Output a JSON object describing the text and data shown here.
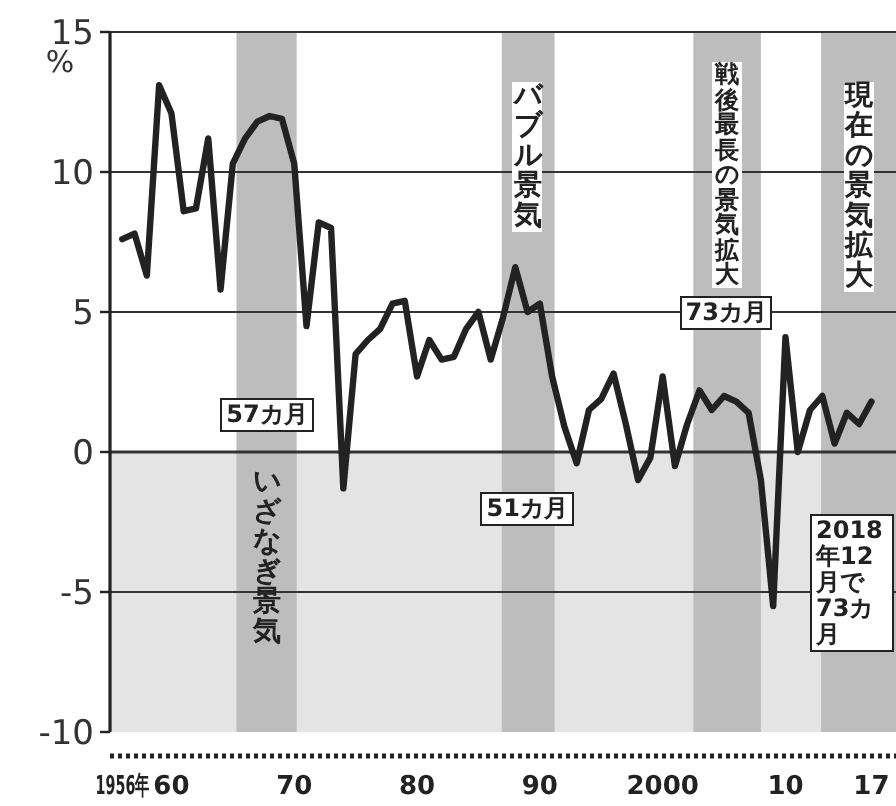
{
  "chart_data": {
    "type": "line",
    "ylabel": "%",
    "x": [
      1956,
      1957,
      1958,
      1959,
      1960,
      1961,
      1962,
      1963,
      1964,
      1965,
      1966,
      1967,
      1968,
      1969,
      1970,
      1971,
      1972,
      1973,
      1974,
      1975,
      1976,
      1977,
      1978,
      1979,
      1980,
      1981,
      1982,
      1983,
      1984,
      1985,
      1986,
      1987,
      1988,
      1989,
      1990,
      1991,
      1992,
      1993,
      1994,
      1995,
      1996,
      1997,
      1998,
      1999,
      2000,
      2001,
      2002,
      2003,
      2004,
      2005,
      2006,
      2007,
      2008,
      2009,
      2010,
      2011,
      2012,
      2013,
      2014,
      2015,
      2016,
      2017
    ],
    "series": [
      {
        "color": "#222222",
        "values": [
          7.6,
          7.8,
          6.3,
          13.1,
          12.1,
          8.6,
          8.7,
          11.2,
          5.8,
          10.3,
          11.2,
          11.8,
          12.0,
          11.9,
          10.3,
          4.5,
          8.2,
          8.0,
          -1.3,
          3.5,
          4.0,
          4.4,
          5.3,
          5.4,
          2.7,
          4.0,
          3.3,
          3.4,
          4.4,
          5.0,
          3.3,
          4.8,
          6.6,
          5.0,
          5.3,
          2.7,
          0.9,
          -0.4,
          1.5,
          1.9,
          2.8,
          1.0,
          -1.0,
          -0.2,
          2.7,
          -0.5,
          1.0,
          2.2,
          1.5,
          2.0,
          1.8,
          1.4,
          -1.0,
          -5.5,
          4.1,
          0.0,
          1.5,
          2.0,
          0.3,
          1.4,
          1.0,
          1.8
        ]
      }
    ],
    "xlim": [
      1955,
      2019
    ],
    "ylim": [
      -10,
      15
    ],
    "xticks": [
      {
        "value": 1956,
        "label": "1956年"
      },
      {
        "value": 1960,
        "label": "60"
      },
      {
        "value": 1970,
        "label": "70"
      },
      {
        "value": 1980,
        "label": "80"
      },
      {
        "value": 1990,
        "label": "90"
      },
      {
        "value": 2000,
        "label": "2000"
      },
      {
        "value": 2010,
        "label": "10"
      },
      {
        "value": 2017,
        "label": "17"
      }
    ],
    "yticks": [
      -10,
      -5,
      0,
      5,
      10,
      15
    ],
    "grid": "y",
    "marker": "none",
    "line_style": "solid",
    "bands": [
      {
        "axis": "y",
        "from": -10,
        "to": 0,
        "color": "#e4e4e4"
      },
      {
        "axis": "x",
        "from": 1965.3,
        "to": 1970.2,
        "color": "#bdbdbd"
      },
      {
        "axis": "x",
        "from": 1986.9,
        "to": 1991.2,
        "color": "#bdbdbd"
      },
      {
        "axis": "x",
        "from": 2002.5,
        "to": 2008.0,
        "color": "#bdbdbd"
      },
      {
        "axis": "x",
        "from": 2012.9,
        "to": 2019,
        "color": "#bdbdbd"
      }
    ],
    "annotations": [
      "いざなぎ景気",
      "バブル景気",
      "戦後最長の景気拡大",
      "現在の景気拡大",
      "57カ月",
      "51カ月",
      "73カ月",
      "2018年12月で73カ月"
    ]
  }
}
